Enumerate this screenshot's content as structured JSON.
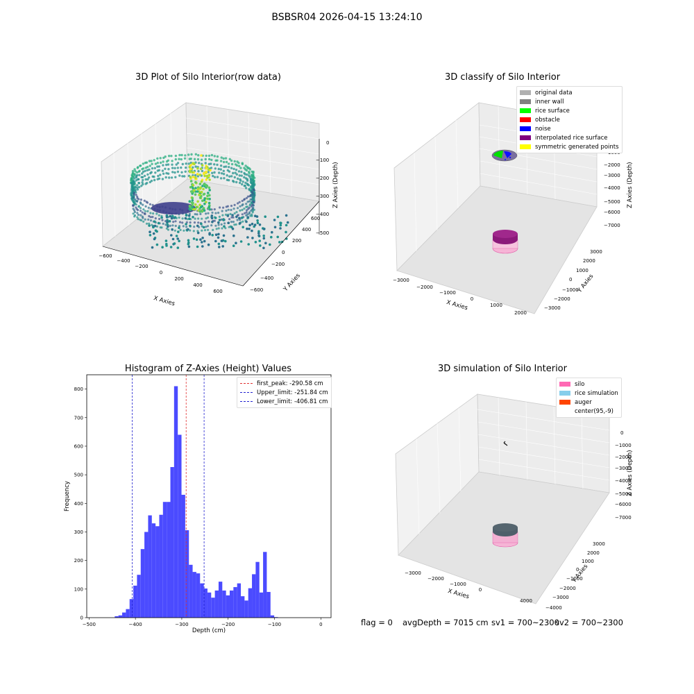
{
  "figure_title": "BSBSR04 2026-04-15 13:24:10",
  "status": {
    "flag": "flag = 0",
    "avgDepth": "avgDepth = 7015 cm",
    "sv1": "sv1 = 700~2300",
    "sv2": "sv2 = 700~2300"
  },
  "colors": {
    "histogram_bar": "#4b4bff",
    "peak_line": "#e03030",
    "limit_line": "#2020d0",
    "silo": "#ff69b4",
    "rice_simulation": "#87ceeb",
    "auger": "#ff4500",
    "viridis_low": "#440154",
    "viridis_high": "#fde725"
  },
  "chart_data": [
    {
      "type": "scatter",
      "title": "3D Plot of Silo Interior(row data)",
      "xlabel": "X Axies",
      "ylabel": "Y Axies",
      "zlabel": "Z Axies (Depth)",
      "x_ticks": [
        "−600",
        "−400",
        "−200",
        "0",
        "200",
        "400",
        "600"
      ],
      "y_ticks": [
        "−600",
        "−400",
        "−200",
        "0",
        "200",
        "400",
        "600"
      ],
      "z_ticks": [
        "−500",
        "−400",
        "−300",
        "−200",
        "−100",
        "0"
      ],
      "xlim": [
        -600,
        600
      ],
      "ylim": [
        -600,
        600
      ],
      "zlim": [
        -500,
        0
      ],
      "colormap": "viridis"
    },
    {
      "type": "scatter",
      "title": "3D classify of Silo Interior",
      "xlabel": "X Axies",
      "ylabel": "Y Axies",
      "zlabel": "Z Axies (Depth)",
      "x_ticks": [
        "−3000",
        "−2000",
        "−1000",
        "0",
        "1000",
        "2000",
        "3000"
      ],
      "y_ticks": [
        "−3000",
        "−2000",
        "−1000",
        "0",
        "1000",
        "2000",
        "3000"
      ],
      "z_ticks": [
        "−7000",
        "−6000",
        "−5000",
        "−4000",
        "−3000",
        "−2000",
        "−1000",
        "0"
      ],
      "legend_position": "top-right",
      "legend": [
        {
          "label": "original data",
          "color": "#b0b0b0"
        },
        {
          "label": "inner wall",
          "color": "#808080"
        },
        {
          "label": "rice surface",
          "color": "#00ff00"
        },
        {
          "label": "obstacle",
          "color": "#ff0000"
        },
        {
          "label": "noise",
          "color": "#0000ff"
        },
        {
          "label": "interpolated rice surface",
          "color": "#800080"
        },
        {
          "label": "symmetric generated points",
          "color": "#ffff00"
        }
      ]
    },
    {
      "type": "bar",
      "title": "Histogram of Z-Axies (Height) Values",
      "xlabel": "Depth (cm)",
      "ylabel": "Frequency",
      "xlim": [
        -505,
        22
      ],
      "ylim": [
        0,
        850
      ],
      "x_ticks": [
        -500,
        -400,
        -300,
        -200,
        -100,
        0
      ],
      "x_tick_labels": [
        "−500",
        "−400",
        "−300",
        "−200",
        "−100",
        "0"
      ],
      "y_ticks": [
        0,
        100,
        200,
        300,
        400,
        500,
        600,
        700,
        800
      ],
      "bin_start": -444.6,
      "bin_width": 8.0,
      "values": [
        5,
        8,
        18,
        30,
        65,
        112,
        150,
        240,
        300,
        358,
        330,
        320,
        360,
        405,
        405,
        527,
        810,
        640,
        430,
        306,
        185,
        160,
        155,
        120,
        102,
        88,
        70,
        95,
        126,
        95,
        78,
        95,
        107,
        120,
        75,
        60,
        103,
        152,
        195,
        88,
        230,
        90,
        8,
        2
      ],
      "legend_position": "top-right",
      "lines": [
        {
          "label": "first_peak: -290.58 cm",
          "x": -290.58,
          "color": "#e03030"
        },
        {
          "label": "Upper_limit: -251.84 cm",
          "x": -251.84,
          "color": "#2020d0"
        },
        {
          "label": "Lower_limit: -406.81 cm",
          "x": -406.81,
          "color": "#2020d0"
        }
      ]
    },
    {
      "type": "scatter",
      "title": "3D simulation of Silo Interior",
      "xlabel": "X Axies",
      "ylabel": "Y Axies",
      "zlabel": "Z Axies (Depth)",
      "x_ticks": [
        "−3000",
        "−2000",
        "−1000",
        "0",
        "1000",
        "2000",
        "3000",
        "4000"
      ],
      "y_ticks": [
        "−4000",
        "−3000",
        "−2000",
        "−1000",
        "0",
        "1000",
        "2000",
        "3000"
      ],
      "z_ticks": [
        "−7000",
        "−6000",
        "−5000",
        "−4000",
        "−3000",
        "−2000",
        "−1000",
        "0"
      ],
      "legend_position": "top-right",
      "legend": [
        {
          "label": "silo",
          "color": "#ff69b4"
        },
        {
          "label": "rice simulation",
          "color": "#87ceeb"
        },
        {
          "label": "auger",
          "color": "#ff4500"
        },
        {
          "label": "center(95,-9)",
          "color": "#ffffff"
        }
      ]
    }
  ]
}
